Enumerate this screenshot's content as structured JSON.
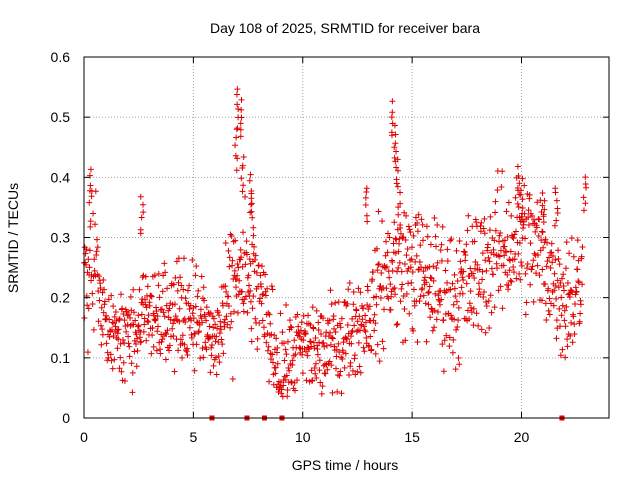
{
  "chart_data": {
    "type": "scatter",
    "title": "Day 108 of 2025, SRMTID for receiver bara",
    "xlabel": "GPS time / hours",
    "ylabel": "SRMTID / TECUs",
    "xlim": [
      0,
      24
    ],
    "ylim": [
      0,
      0.6
    ],
    "xticks": [
      0,
      5,
      10,
      15,
      20
    ],
    "xtick_labels": [
      "0",
      "5",
      "10",
      "15",
      "20"
    ],
    "yticks": [
      0,
      0.1,
      0.2,
      0.3,
      0.4,
      0.5,
      0.6
    ],
    "ytick_labels": [
      "0",
      "0.1",
      "0.2",
      "0.3",
      "0.4",
      "0.5",
      "0.6"
    ],
    "grid": true,
    "marker": "+",
    "marker_color": "#e00000",
    "grid_color": "#a0a0a0",
    "series": [
      {
        "name": "SRMTID",
        "trend": [
          [
            0.0,
            0.22
          ],
          [
            0.5,
            0.25
          ],
          [
            1.0,
            0.14
          ],
          [
            2.0,
            0.14
          ],
          [
            3.0,
            0.19
          ],
          [
            4.0,
            0.17
          ],
          [
            5.0,
            0.18
          ],
          [
            6.0,
            0.12
          ],
          [
            7.0,
            0.24
          ],
          [
            8.0,
            0.2
          ],
          [
            9.0,
            0.08
          ],
          [
            10.0,
            0.12
          ],
          [
            11.0,
            0.11
          ],
          [
            12.0,
            0.14
          ],
          [
            13.0,
            0.17
          ],
          [
            14.0,
            0.25
          ],
          [
            15.0,
            0.25
          ],
          [
            16.0,
            0.22
          ],
          [
            17.0,
            0.2
          ],
          [
            18.0,
            0.24
          ],
          [
            19.0,
            0.28
          ],
          [
            20.0,
            0.3
          ],
          [
            21.0,
            0.27
          ],
          [
            22.0,
            0.2
          ],
          [
            22.8,
            0.22
          ]
        ],
        "spikes": [
          {
            "x": 0.3,
            "y": 0.42
          },
          {
            "x": 2.65,
            "y": 0.37
          },
          {
            "x": 6.95,
            "y": 0.48
          },
          {
            "x": 7.05,
            "y": 0.55
          },
          {
            "x": 7.15,
            "y": 0.53
          },
          {
            "x": 7.25,
            "y": 0.44
          },
          {
            "x": 7.7,
            "y": 0.37
          },
          {
            "x": 7.6,
            "y": 0.41
          },
          {
            "x": 12.9,
            "y": 0.39
          },
          {
            "x": 14.1,
            "y": 0.53
          },
          {
            "x": 14.2,
            "y": 0.49
          },
          {
            "x": 14.3,
            "y": 0.45
          },
          {
            "x": 14.4,
            "y": 0.39
          },
          {
            "x": 19.85,
            "y": 0.42
          },
          {
            "x": 20.0,
            "y": 0.4
          },
          {
            "x": 21.0,
            "y": 0.38
          },
          {
            "x": 21.6,
            "y": 0.39
          },
          {
            "x": 22.9,
            "y": 0.41
          }
        ],
        "zero_points": [
          {
            "x": 5.85,
            "y": 0
          },
          {
            "x": 7.45,
            "y": 0
          },
          {
            "x": 8.25,
            "y": 0
          },
          {
            "x": 9.05,
            "y": 0
          },
          {
            "x": 21.85,
            "y": 0
          }
        ]
      }
    ]
  }
}
